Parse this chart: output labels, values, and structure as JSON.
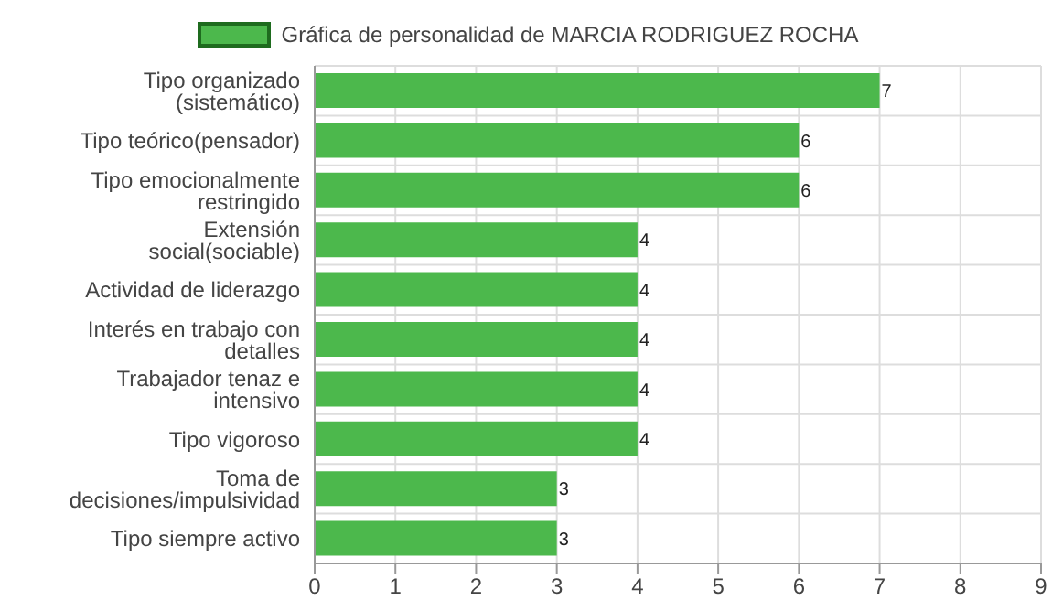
{
  "chart_data": {
    "type": "bar",
    "orientation": "horizontal",
    "categories": [
      "Tipo organizado (sistemático)",
      "Tipo teórico(pensador)",
      "Tipo emocionalmente restringido",
      "Extensión social(sociable)",
      "Actividad de liderazgo",
      "Interés en trabajo con detalles",
      "Trabajador tenaz e intensivo",
      "Tipo vigoroso",
      "Toma de decisiones/impulsividad",
      "Tipo siempre activo"
    ],
    "series": [
      {
        "name": "Gráfica de personalidad de MARCIA RODRIGUEZ ROCHA",
        "color": "#4cb84c",
        "values": [
          7,
          6,
          6,
          4,
          4,
          4,
          4,
          4,
          3,
          3
        ]
      }
    ],
    "xlim": [
      0,
      9
    ],
    "xticks": [
      0,
      1,
      2,
      3,
      4,
      5,
      6,
      7,
      8,
      9
    ],
    "grid": true,
    "legend": "top",
    "data_labels": true
  }
}
